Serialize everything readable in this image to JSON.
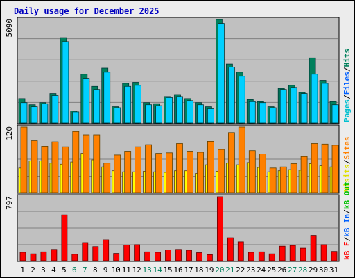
{
  "title": "Daily usage for December 2025",
  "colors": {
    "pages": "#00c0d0",
    "files": "#00d0ff",
    "hits": "#00805c",
    "visits": "#ffff00",
    "sites": "#ff8000",
    "kbin": "#ff0000",
    "weekday_label": "#000000",
    "weekend_label": "#00805c",
    "plot_bg": "#c0c0c0",
    "gridline": "#808080",
    "frame_bg": "#ececec",
    "title": "#0000c0"
  },
  "chart_data": [
    {
      "type": "bar",
      "name": "hits-files-pages",
      "categories": [
        "1",
        "2",
        "3",
        "4",
        "5",
        "6",
        "7",
        "8",
        "9",
        "10",
        "11",
        "12",
        "13",
        "14",
        "15",
        "16",
        "17",
        "18",
        "19",
        "20",
        "21",
        "22",
        "23",
        "24",
        "25",
        "26",
        "27",
        "28",
        "29",
        "30",
        "31"
      ],
      "ymax_label": "5090",
      "ylim": [
        0,
        5090
      ],
      "grid": true,
      "legend": [
        {
          "text": "Pages",
          "color": "#00c0d0"
        },
        {
          "text": "/",
          "color": "#000000"
        },
        {
          "text": "Files",
          "color": "#0060ff"
        },
        {
          "text": "/",
          "color": "#000000"
        },
        {
          "text": "Hits",
          "color": "#00805c"
        }
      ],
      "series": [
        {
          "name": "Hits",
          "values": [
            1200,
            900,
            1000,
            1450,
            4200,
            600,
            2400,
            1800,
            2700,
            800,
            1950,
            2000,
            1000,
            950,
            1300,
            1400,
            1200,
            1000,
            800,
            5090,
            2900,
            2500,
            1150,
            1050,
            800,
            1700,
            1850,
            1500,
            3200,
            2100,
            1050
          ]
        },
        {
          "name": "Files",
          "values": [
            1000,
            800,
            950,
            1350,
            4000,
            550,
            2200,
            1650,
            2500,
            750,
            1800,
            1850,
            900,
            850,
            1250,
            1300,
            1100,
            900,
            700,
            4900,
            2750,
            2300,
            1050,
            1000,
            750,
            1650,
            1750,
            1450,
            2400,
            1950,
            900
          ]
        }
      ]
    },
    {
      "type": "bar",
      "name": "visits-sites",
      "categories": [
        "1",
        "2",
        "3",
        "4",
        "5",
        "6",
        "7",
        "8",
        "9",
        "10",
        "11",
        "12",
        "13",
        "14",
        "15",
        "16",
        "17",
        "18",
        "19",
        "20",
        "21",
        "22",
        "23",
        "24",
        "25",
        "26",
        "27",
        "28",
        "29",
        "30",
        "31"
      ],
      "ymax_label": "120",
      "ylim": [
        0,
        120
      ],
      "grid": true,
      "legend": [
        {
          "text": "Visits",
          "color": "#e0e000"
        },
        {
          "text": "/",
          "color": "#000000"
        },
        {
          "text": "Sites",
          "color": "#ff8000"
        }
      ],
      "series": [
        {
          "name": "Visits",
          "values": [
            45,
            58,
            58,
            54,
            52,
            56,
            72,
            60,
            47,
            40,
            38,
            38,
            39,
            38,
            37,
            40,
            40,
            35,
            51,
            39,
            54,
            51,
            55,
            46,
            38,
            40,
            42,
            41,
            53,
            49,
            47
          ]
        },
        {
          "name": "Sites",
          "values": [
            120,
            95,
            85,
            93,
            84,
            112,
            106,
            106,
            54,
            69,
            76,
            84,
            88,
            72,
            73,
            90,
            76,
            74,
            94,
            79,
            110,
            120,
            77,
            71,
            45,
            47,
            53,
            66,
            90,
            89,
            87
          ]
        }
      ]
    },
    {
      "type": "bar",
      "name": "kb-in",
      "categories": [
        "1",
        "2",
        "3",
        "4",
        "5",
        "6",
        "7",
        "8",
        "9",
        "10",
        "11",
        "12",
        "13",
        "14",
        "15",
        "16",
        "17",
        "18",
        "19",
        "20",
        "21",
        "22",
        "23",
        "24",
        "25",
        "26",
        "27",
        "28",
        "29",
        "30",
        "31"
      ],
      "ymax_label": "797",
      "ylim": [
        0,
        797
      ],
      "grid": true,
      "legend": [
        {
          "text": "kB F",
          "color": "#ff0000"
        },
        {
          "text": "/",
          "color": "#000000"
        },
        {
          "text": "kB In",
          "color": "#0060ff"
        },
        {
          "text": "/",
          "color": "#000000"
        },
        {
          "text": "kB Out",
          "color": "#00c000"
        }
      ],
      "series": [
        {
          "name": "kB In",
          "values": [
            105,
            85,
            110,
            140,
            570,
            80,
            225,
            175,
            260,
            90,
            195,
            200,
            110,
            105,
            135,
            140,
            130,
            100,
            75,
            797,
            285,
            235,
            105,
            110,
            85,
            180,
            190,
            155,
            315,
            200,
            115
          ]
        }
      ],
      "weekend_days": [
        "6",
        "7",
        "13",
        "14",
        "20",
        "21",
        "27",
        "28"
      ]
    }
  ]
}
